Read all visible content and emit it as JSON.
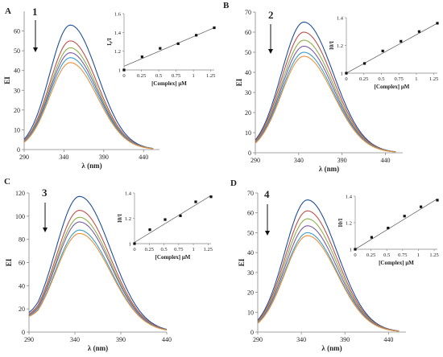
{
  "chart_data": [
    {
      "panel_label": "A",
      "compound_number": "1",
      "main": {
        "type": "line",
        "xlabel": "λ (nm)",
        "ylabel": "EI",
        "xlim": [
          290,
          460
        ],
        "ylim": [
          0,
          70
        ],
        "xticks": [
          290,
          340,
          390,
          440
        ],
        "yticks": [
          0,
          10,
          20,
          30,
          40,
          50,
          60
        ],
        "peak_x": 348,
        "series": [
          {
            "peak": 63,
            "color": "#1f4e9c"
          },
          {
            "peak": 55,
            "color": "#c0504d"
          },
          {
            "peak": 51.5,
            "color": "#8db04a"
          },
          {
            "peak": 49,
            "color": "#7d5ba6"
          },
          {
            "peak": 46.5,
            "color": "#3c9ec9"
          },
          {
            "peak": 44,
            "color": "#e8923a"
          }
        ]
      },
      "inset": {
        "type": "scatter",
        "xlabel": "[Complex] μM",
        "ylabel": "I₀/I",
        "xlim": [
          0,
          1.3
        ],
        "ylim": [
          1,
          1.6
        ],
        "xticks": [
          "0",
          "0.25",
          "0.5",
          "0.75",
          "1",
          "1.25"
        ],
        "yticks": [
          "1",
          "1.2",
          "1.4",
          "1.6"
        ],
        "points": [
          [
            0,
            1.0
          ],
          [
            0.26,
            1.14
          ],
          [
            0.52,
            1.23
          ],
          [
            0.78,
            1.28
          ],
          [
            1.04,
            1.37
          ],
          [
            1.3,
            1.45
          ]
        ],
        "fit": [
          [
            0,
            1.04
          ],
          [
            1.3,
            1.45
          ]
        ]
      }
    },
    {
      "panel_label": "B",
      "compound_number": "2",
      "main": {
        "type": "line",
        "xlabel": "λ (nm)",
        "ylabel": "EI",
        "xlim": [
          290,
          460
        ],
        "ylim": [
          0,
          70
        ],
        "xticks": [
          290,
          340,
          390,
          440
        ],
        "yticks": [
          0,
          10,
          20,
          30,
          40,
          50,
          60,
          70
        ],
        "peak_x": 346,
        "series": [
          {
            "peak": 65,
            "color": "#1f4e9c"
          },
          {
            "peak": 60,
            "color": "#c0504d"
          },
          {
            "peak": 56,
            "color": "#8db04a"
          },
          {
            "peak": 53,
            "color": "#7d5ba6"
          },
          {
            "peak": 50,
            "color": "#3c9ec9"
          },
          {
            "peak": 48,
            "color": "#e8923a"
          }
        ]
      },
      "inset": {
        "type": "scatter",
        "xlabel": "[Complex] μM",
        "ylabel": "I0/I",
        "xlim": [
          0,
          1.3
        ],
        "ylim": [
          1,
          1.4
        ],
        "xticks": [
          "0",
          "0.25",
          "0.5",
          "0.75",
          "1",
          "1.25"
        ],
        "yticks": [
          "1",
          "1.2",
          "1.4"
        ],
        "points": [
          [
            0,
            1.0
          ],
          [
            0.26,
            1.07
          ],
          [
            0.52,
            1.16
          ],
          [
            0.78,
            1.23
          ],
          [
            1.04,
            1.3
          ],
          [
            1.3,
            1.36
          ]
        ],
        "fit": [
          [
            0,
            1.0
          ],
          [
            1.3,
            1.36
          ]
        ]
      }
    },
    {
      "panel_label": "C",
      "compound_number": "3",
      "main": {
        "type": "line",
        "xlabel": "λ (nm)",
        "ylabel": "EI",
        "xlim": [
          290,
          440
        ],
        "ylim": [
          0,
          120
        ],
        "xticks": [
          290,
          340,
          390,
          440
        ],
        "yticks": [
          0,
          20,
          40,
          60,
          80,
          100,
          120
        ],
        "peak_x": 345,
        "series": [
          {
            "peak": 117,
            "color": "#1f4e9c"
          },
          {
            "peak": 105,
            "color": "#c0504d"
          },
          {
            "peak": 99,
            "color": "#8db04a"
          },
          {
            "peak": 95,
            "color": "#7d5ba6"
          },
          {
            "peak": 88,
            "color": "#3c9ec9"
          },
          {
            "peak": 85,
            "color": "#e8923a"
          }
        ]
      },
      "inset": {
        "type": "scatter",
        "xlabel": "[Complex] μM",
        "ylabel": "I0/I",
        "xlim": [
          0,
          1.3
        ],
        "ylim": [
          1,
          1.4
        ],
        "xticks": [
          "0",
          "0.25",
          "0.5",
          "0.75",
          "1",
          "1.25"
        ],
        "yticks": [
          "1",
          "1.2",
          "1.4"
        ],
        "points": [
          [
            0,
            1.0
          ],
          [
            0.26,
            1.11
          ],
          [
            0.52,
            1.19
          ],
          [
            0.78,
            1.22
          ],
          [
            1.04,
            1.33
          ],
          [
            1.3,
            1.37
          ]
        ],
        "fit": [
          [
            0,
            1.01
          ],
          [
            1.3,
            1.38
          ]
        ]
      }
    },
    {
      "panel_label": "D",
      "compound_number": "4",
      "main": {
        "type": "line",
        "xlabel": "λ (nm)",
        "ylabel": "EI",
        "xlim": [
          290,
          460
        ],
        "ylim": [
          0,
          70
        ],
        "xticks": [
          290,
          340,
          390,
          440
        ],
        "yticks": [
          0,
          10,
          20,
          30,
          40,
          50,
          60,
          70
        ],
        "peak_x": 347,
        "series": [
          {
            "peak": 66.5,
            "color": "#1f4e9c"
          },
          {
            "peak": 61,
            "color": "#c0504d"
          },
          {
            "peak": 57,
            "color": "#8db04a"
          },
          {
            "peak": 53.5,
            "color": "#7d5ba6"
          },
          {
            "peak": 50,
            "color": "#3c9ec9"
          },
          {
            "peak": 48.5,
            "color": "#e8923a"
          }
        ]
      },
      "inset": {
        "type": "scatter",
        "xlabel": "[Complex] μM",
        "ylabel": "I0/I",
        "xlim": [
          0,
          1.3
        ],
        "ylim": [
          1,
          1.4
        ],
        "xticks": [
          "0",
          "0.25",
          "0.5",
          "0.75",
          "1",
          "1.25"
        ],
        "yticks": [
          "1",
          "1.2",
          "1.4"
        ],
        "points": [
          [
            0,
            1.0
          ],
          [
            0.26,
            1.09
          ],
          [
            0.52,
            1.16
          ],
          [
            0.78,
            1.25
          ],
          [
            1.04,
            1.32
          ],
          [
            1.3,
            1.37
          ]
        ],
        "fit": [
          [
            0,
            1.0
          ],
          [
            1.3,
            1.38
          ]
        ]
      }
    }
  ]
}
